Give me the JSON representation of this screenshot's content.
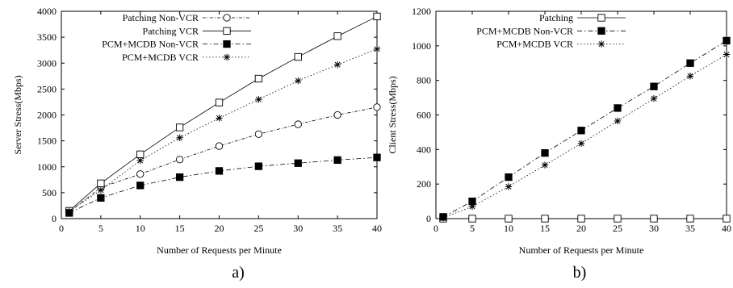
{
  "chart_data": [
    {
      "type": "line",
      "caption": "a)",
      "xlabel": "Number of Requests per Minute",
      "ylabel": "Server Stress(Mbps)",
      "xlim": [
        0,
        40
      ],
      "ylim": [
        0,
        4000
      ],
      "xticks": [
        0,
        5,
        10,
        15,
        20,
        25,
        30,
        35,
        40
      ],
      "yticks": [
        0,
        500,
        1000,
        1500,
        2000,
        2500,
        3000,
        3500,
        4000
      ],
      "grid": false,
      "legend_position": "top-left",
      "x": [
        1,
        5,
        10,
        15,
        20,
        25,
        30,
        35,
        40
      ],
      "series": [
        {
          "name": "Patching Non-VCR",
          "marker": "circle",
          "dash": "dashdot2",
          "values": [
            130,
            600,
            860,
            1140,
            1400,
            1630,
            1820,
            2000,
            2150
          ]
        },
        {
          "name": "Patching VCR",
          "marker": "square",
          "dash": "solid",
          "values": [
            150,
            680,
            1240,
            1760,
            2240,
            2700,
            3120,
            3520,
            3900
          ]
        },
        {
          "name": "PCM+MCDB Non-VCR",
          "marker": "filled-square",
          "dash": "dashdot",
          "values": [
            110,
            400,
            640,
            800,
            920,
            1010,
            1070,
            1130,
            1180
          ]
        },
        {
          "name": "PCM+MCDB VCR",
          "marker": "star",
          "dash": "dotted",
          "values": [
            140,
            550,
            1120,
            1560,
            1940,
            2300,
            2660,
            2970,
            3270
          ]
        }
      ]
    },
    {
      "type": "line",
      "caption": "b)",
      "xlabel": "Number of Requests per Minute",
      "ylabel": "Client Stress(Mbps)",
      "xlim": [
        0,
        40
      ],
      "ylim": [
        0,
        1200
      ],
      "xticks": [
        0,
        5,
        10,
        15,
        20,
        25,
        30,
        35,
        40
      ],
      "yticks": [
        0,
        200,
        400,
        600,
        800,
        1000,
        1200
      ],
      "grid": false,
      "legend_position": "top-left",
      "x": [
        1,
        5,
        10,
        15,
        20,
        25,
        30,
        35,
        40
      ],
      "series": [
        {
          "name": "Patching",
          "marker": "square",
          "dash": "solid",
          "values": [
            0,
            0,
            0,
            0,
            0,
            0,
            0,
            0,
            0
          ]
        },
        {
          "name": "PCM+MCDB Non-VCR",
          "marker": "filled-square",
          "dash": "dashdot",
          "values": [
            10,
            100,
            240,
            380,
            510,
            640,
            765,
            900,
            1030
          ]
        },
        {
          "name": "PCM+MCDB VCR",
          "marker": "star",
          "dash": "dotted",
          "values": [
            5,
            70,
            185,
            310,
            435,
            565,
            695,
            825,
            950
          ]
        }
      ]
    }
  ]
}
